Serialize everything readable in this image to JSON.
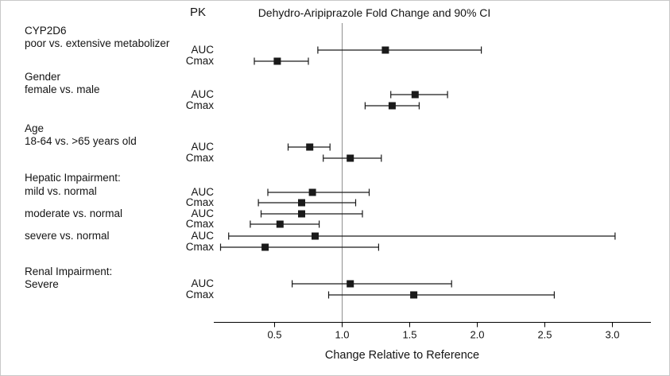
{
  "title": "Dehydro-Aripiprazole Fold Change and 90% CI",
  "pk_header": "PK",
  "x_axis_title": "Change Relative to Reference",
  "chart_data": {
    "type": "forest",
    "ci_level": "90% CI",
    "x_range": [
      0.05,
      3.25
    ],
    "x_ticks": [
      "0.5",
      "1.0",
      "1.5",
      "2.0",
      "2.5",
      "3.0"
    ],
    "reference_line": 1.0,
    "colors": {
      "marker": "#1a1a1a",
      "whisker": "#1a1a1a",
      "axis": "#000000",
      "reference_line": "#8f8f8f"
    },
    "groups": [
      {
        "label_lines": [
          "CYP2D6",
          "poor vs. extensive metabolizer"
        ],
        "rows": [
          {
            "pk": "AUC",
            "estimate": 1.32,
            "ci_low": 0.82,
            "ci_high": 2.03
          },
          {
            "pk": "Cmax",
            "estimate": 0.52,
            "ci_low": 0.35,
            "ci_high": 0.75
          }
        ]
      },
      {
        "label_lines": [
          "Gender",
          "female vs. male"
        ],
        "rows": [
          {
            "pk": "AUC",
            "estimate": 1.54,
            "ci_low": 1.36,
            "ci_high": 1.78
          },
          {
            "pk": "Cmax",
            "estimate": 1.37,
            "ci_low": 1.17,
            "ci_high": 1.57
          }
        ]
      },
      {
        "label_lines": [
          "Age",
          "18-64 vs. >65 years old"
        ],
        "rows": [
          {
            "pk": "AUC",
            "estimate": 0.76,
            "ci_low": 0.6,
            "ci_high": 0.91
          },
          {
            "pk": "Cmax",
            "estimate": 1.06,
            "ci_low": 0.86,
            "ci_high": 1.29
          }
        ]
      },
      {
        "label_lines": [
          "Hepatic Impairment:",
          "mild vs. normal"
        ],
        "rows": [
          {
            "pk": "AUC",
            "estimate": 0.78,
            "ci_low": 0.45,
            "ci_high": 1.2
          },
          {
            "pk": "Cmax",
            "estimate": 0.7,
            "ci_low": 0.38,
            "ci_high": 1.1
          }
        ]
      },
      {
        "label_lines": [
          "moderate vs. normal"
        ],
        "rows": [
          {
            "pk": "AUC",
            "estimate": 0.7,
            "ci_low": 0.4,
            "ci_high": 1.15
          },
          {
            "pk": "Cmax",
            "estimate": 0.54,
            "ci_low": 0.32,
            "ci_high": 0.83
          }
        ]
      },
      {
        "label_lines": [
          "severe vs. normal"
        ],
        "rows": [
          {
            "pk": "AUC",
            "estimate": 0.8,
            "ci_low": 0.16,
            "ci_high": 3.02
          },
          {
            "pk": "Cmax",
            "estimate": 0.43,
            "ci_low": 0.1,
            "ci_high": 1.27
          }
        ]
      },
      {
        "label_lines": [
          "Renal Impairment:",
          "Severe"
        ],
        "rows": [
          {
            "pk": "AUC",
            "estimate": 1.06,
            "ci_low": 0.63,
            "ci_high": 1.81
          },
          {
            "pk": "Cmax",
            "estimate": 1.53,
            "ci_low": 0.9,
            "ci_high": 2.57
          }
        ]
      }
    ]
  }
}
